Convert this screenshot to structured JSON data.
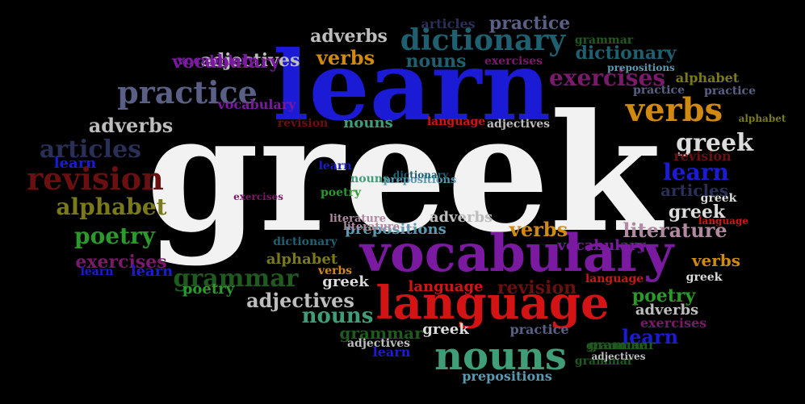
{
  "title": "greek",
  "words": [
    {
      "text": "greek",
      "color": "#f2f2f2"
    },
    {
      "text": "learn",
      "color": "#1b1bd6"
    },
    {
      "text": "vocabulary",
      "color": "#7a1aa0"
    },
    {
      "text": "language",
      "color": "#d41414"
    },
    {
      "text": "nouns",
      "color": "#3f9e78"
    },
    {
      "text": "dictionary",
      "color": "#1f6070"
    },
    {
      "text": "practice",
      "color": "#5a5f85"
    },
    {
      "text": "verbs",
      "color": "#d08a10"
    },
    {
      "text": "revision",
      "color": "#6a1010"
    },
    {
      "text": "articles",
      "color": "#2a2f55"
    },
    {
      "text": "exercises",
      "color": "#7a1a6a"
    },
    {
      "text": "alphabet",
      "color": "#7a7a1a"
    },
    {
      "text": "poetry",
      "color": "#2a9a2a"
    },
    {
      "text": "grammar",
      "color": "#1f5a1f"
    },
    {
      "text": "adverbs",
      "color": "#bdbdbd"
    },
    {
      "text": "adjectives",
      "color": "#bdbdbd"
    },
    {
      "text": "literature",
      "color": "#b08aa0"
    },
    {
      "text": "prepositions",
      "color": "#5a9ab0"
    },
    {
      "text": "greek",
      "color": "#dcdcdc"
    },
    {
      "text": "learn",
      "color": "#1b1bd6"
    },
    {
      "text": "greek",
      "color": "#dcdcdc"
    },
    {
      "text": "verbs",
      "color": "#d08a10"
    },
    {
      "text": "learn",
      "color": "#1b1bd6"
    },
    {
      "text": "nouns",
      "color": "#3f9e78"
    },
    {
      "text": "adjectives",
      "color": "#bdbdbd"
    },
    {
      "text": "vocabulary",
      "color": "#7a1aa0"
    },
    {
      "text": "poetry",
      "color": "#2a9a2a"
    },
    {
      "text": "exercises",
      "color": "#7a1a6a"
    },
    {
      "text": "literature",
      "color": "#b08aa0"
    },
    {
      "text": "nouns",
      "color": "#1f6070"
    },
    {
      "text": "dictionary",
      "color": "#1f6070"
    },
    {
      "text": "grammar",
      "color": "#1f5a1f"
    },
    {
      "text": "adverbs",
      "color": "#bdbdbd"
    },
    {
      "text": "vocabulary",
      "color": "#7a1aa0"
    },
    {
      "text": "greek",
      "color": "#dcdcdc"
    },
    {
      "text": "alphabet",
      "color": "#7a7a1a"
    },
    {
      "text": "revision",
      "color": "#6a1010"
    },
    {
      "text": "language",
      "color": "#d41414"
    },
    {
      "text": "verbs",
      "color": "#d08a10"
    },
    {
      "text": "nouns",
      "color": "#3f9e78"
    },
    {
      "text": "learn",
      "color": "#1b1bd6"
    },
    {
      "text": "practice",
      "color": "#5a5f85"
    },
    {
      "text": "exercises",
      "color": "#7a1a6a"
    },
    {
      "text": "adverbs",
      "color": "#bdbdbd"
    },
    {
      "text": "poetry",
      "color": "#2a9a2a"
    },
    {
      "text": "greek",
      "color": "#dcdcdc"
    },
    {
      "text": "grammar",
      "color": "#1f5a1f"
    },
    {
      "text": "prepositions",
      "color": "#5a9ab0"
    },
    {
      "text": "vocabulary",
      "color": "#7a1aa0"
    },
    {
      "text": "dictionary",
      "color": "#1f6070"
    },
    {
      "text": "learn",
      "color": "#1b1bd6"
    },
    {
      "text": "verbs",
      "color": "#d08a10"
    },
    {
      "text": "alphabet",
      "color": "#7a7a1a"
    },
    {
      "text": "articles",
      "color": "#2a2f55"
    },
    {
      "text": "revision",
      "color": "#6a1010"
    },
    {
      "text": "language",
      "color": "#d41414"
    },
    {
      "text": "greek",
      "color": "#dcdcdc"
    },
    {
      "text": "adjectives",
      "color": "#bdbdbd"
    },
    {
      "text": "grammar",
      "color": "#1f5a1f"
    },
    {
      "text": "practice",
      "color": "#5a5f85"
    },
    {
      "text": "literature",
      "color": "#b08aa0"
    },
    {
      "text": "poetry",
      "color": "#2a9a2a"
    },
    {
      "text": "exercises",
      "color": "#7a1a6a"
    },
    {
      "text": "learn",
      "color": "#1b1bd6"
    },
    {
      "text": "verbs",
      "color": "#d08a10"
    },
    {
      "text": "nouns",
      "color": "#3f9e78"
    },
    {
      "text": "grammar",
      "color": "#1f5a1f"
    },
    {
      "text": "adjectives",
      "color": "#bdbdbd"
    },
    {
      "text": "learn",
      "color": "#1b1bd6"
    },
    {
      "text": "prepositions",
      "color": "#5a9ab0"
    },
    {
      "text": "practice",
      "color": "#5a5f85"
    },
    {
      "text": "greek",
      "color": "#dcdcdc"
    },
    {
      "text": "language",
      "color": "#d41414"
    },
    {
      "text": "revision",
      "color": "#6a1010"
    },
    {
      "text": "adverbs",
      "color": "#bdbdbd"
    },
    {
      "text": "articles",
      "color": "#2a2f55"
    },
    {
      "text": "alphabet",
      "color": "#7a7a1a"
    },
    {
      "text": "vocabulary",
      "color": "#7a1aa0"
    },
    {
      "text": "dictionary",
      "color": "#1f6070"
    },
    {
      "text": "exercises",
      "color": "#7a1a6a"
    },
    {
      "text": "language",
      "color": "#d41414"
    },
    {
      "text": "adjectives",
      "color": "#bdbdbd"
    },
    {
      "text": "grammar",
      "color": "#1f5a1f"
    },
    {
      "text": "practice",
      "color": "#5a5f85"
    },
    {
      "text": "learn",
      "color": "#1b1bd6"
    },
    {
      "text": "prepositions",
      "color": "#5a9ab0"
    }
  ]
}
